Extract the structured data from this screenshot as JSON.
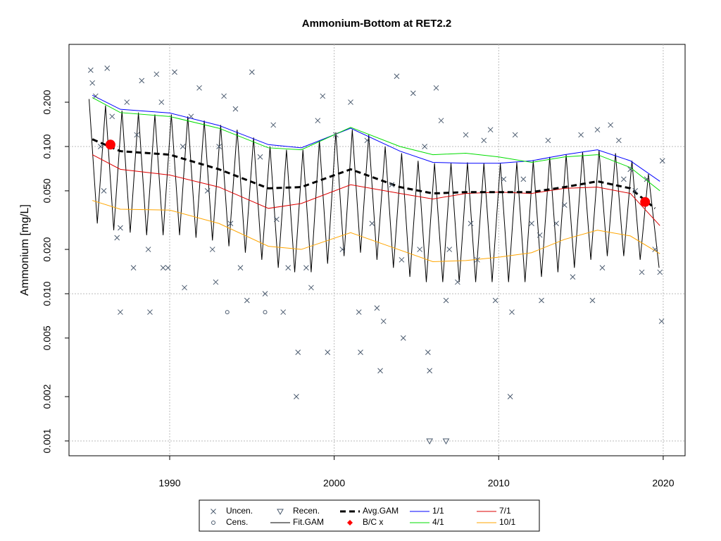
{
  "chart_data": {
    "type": "scatter-line",
    "title": "Ammonium-Bottom at RET2.2",
    "y_label": "Ammonium [mg/L]",
    "log_y": true,
    "xlim": [
      1983.88,
      2021.33
    ],
    "ylim": [
      0.000793,
      0.494
    ],
    "xticks": [
      1990,
      2000,
      2010,
      2020
    ],
    "yticks": [
      0.001,
      0.002,
      0.005,
      {
        "value": 0.01,
        "label": "0.010"
      },
      {
        "value": 0.02,
        "label": "0.020"
      },
      {
        "value": 0.05,
        "label": "0.050"
      },
      {
        "value": 0.1,
        "label": "0.100"
      },
      {
        "value": 0.2,
        "label": "0.200"
      }
    ],
    "y_grid": [
      0.001,
      0.01,
      0.1
    ],
    "grid": true,
    "series": [
      {
        "name": "Uncen.",
        "style": "cross",
        "color": "#4a5a6e",
        "x": [
          1985.2,
          1985.3,
          1985.5,
          1985.8,
          1986,
          1986.2,
          1986.5,
          1986.8,
          1987,
          1987,
          1987.4,
          1987.8,
          1988,
          1988.3,
          1988.7,
          1988.8,
          1989.2,
          1989.5,
          1989.6,
          1989.9,
          1990.3,
          1990.8,
          1990.9,
          1991.3,
          1991.8,
          1992.3,
          1992.6,
          1992.8,
          1993,
          1993.3,
          1993.7,
          1994,
          1994.3,
          1994.7,
          1995,
          1995.5,
          1995.8,
          1996.3,
          1996.5,
          1996.9,
          1997.2,
          1997.8,
          1997.7,
          1998.3,
          1998.6,
          1999,
          1999.3,
          1999.6,
          2000.1,
          2000.5,
          2001,
          2001.5,
          2001.6,
          2002,
          2002.3,
          2002.6,
          2002.8,
          2003,
          2003.5,
          2003.8,
          2004.1,
          2004.2,
          2004.8,
          2005.2,
          2005.5,
          2005.7,
          2005.8,
          2006.2,
          2006.5,
          2006.8,
          2007,
          2007.5,
          2008,
          2008.3,
          2008.7,
          2009.1,
          2009.5,
          2009.8,
          2010.3,
          2010.7,
          2010.8,
          2011,
          2011.5,
          2012,
          2012.5,
          2012.6,
          2013,
          2013.5,
          2014,
          2014.5,
          2015,
          2015.7,
          2016,
          2016.3,
          2016.8,
          2017.3,
          2017.6,
          2018,
          2018.3,
          2018.7,
          2019,
          2019.5,
          2019.8,
          2019.9,
          2019.95
        ],
        "values": [
          0.33,
          0.27,
          0.22,
          0.1,
          0.05,
          0.34,
          0.16,
          0.024,
          0.028,
          0.0075,
          0.2,
          0.015,
          0.12,
          0.28,
          0.02,
          0.0075,
          0.31,
          0.2,
          0.015,
          0.015,
          0.32,
          0.1,
          0.011,
          0.16,
          0.25,
          0.05,
          0.02,
          0.012,
          0.1,
          0.22,
          0.03,
          0.18,
          0.015,
          0.009,
          0.32,
          0.085,
          0.01,
          0.14,
          0.032,
          0.0075,
          0.015,
          0.004,
          0.002,
          0.015,
          0.011,
          0.15,
          0.22,
          0.004,
          0.12,
          0.02,
          0.2,
          0.0075,
          0.004,
          0.11,
          0.03,
          0.008,
          0.003,
          0.0065,
          0.055,
          0.3,
          0.017,
          0.005,
          0.23,
          0.02,
          0.1,
          0.004,
          0.003,
          0.25,
          0.15,
          0.009,
          0.02,
          0.012,
          0.12,
          0.03,
          0.017,
          0.11,
          0.13,
          0.009,
          0.06,
          0.002,
          0.0075,
          0.12,
          0.06,
          0.03,
          0.025,
          0.009,
          0.11,
          0.03,
          0.04,
          0.013,
          0.12,
          0.009,
          0.13,
          0.015,
          0.14,
          0.11,
          0.06,
          0.07,
          0.05,
          0.014,
          0.06,
          0.02,
          0.014,
          0.0065,
          0.08
        ]
      },
      {
        "name": "Cens.",
        "style": "circle",
        "color": "#4a5a6e",
        "x": [
          1993.5,
          1995.8
        ],
        "values": [
          0.0075,
          0.0075
        ]
      },
      {
        "name": "Recen.",
        "style": "triangle",
        "color": "#4a5a6e",
        "x": [
          2005.8,
          2006.8
        ],
        "values": [
          0.001,
          0.001
        ]
      },
      {
        "name": "Fit.GAM",
        "style": "line",
        "color": "#000000",
        "x": [
          1985.1,
          1985.6,
          1986.1,
          1986.6,
          1987.1,
          1987.6,
          1988.1,
          1988.6,
          1989.1,
          1989.6,
          1990.1,
          1990.6,
          1991.1,
          1991.6,
          1992.1,
          1992.6,
          1993.1,
          1993.6,
          1994.1,
          1994.6,
          1995.1,
          1995.6,
          1996.1,
          1996.6,
          1997.1,
          1997.6,
          1998.1,
          1998.6,
          1999.1,
          1999.6,
          2000.1,
          2000.6,
          2001.1,
          2001.6,
          2002.1,
          2002.6,
          2003.1,
          2003.6,
          2004.1,
          2004.6,
          2005.1,
          2005.6,
          2006.1,
          2006.6,
          2007.1,
          2007.6,
          2008.1,
          2008.6,
          2009.1,
          2009.6,
          2010.1,
          2010.6,
          2011.1,
          2011.6,
          2012.1,
          2012.6,
          2013.1,
          2013.6,
          2014.1,
          2014.6,
          2015.1,
          2015.6,
          2016.1,
          2016.6,
          2017.1,
          2017.6,
          2018.1,
          2018.6,
          2019.1,
          2019.75
        ],
        "values": [
          0.21,
          0.03,
          0.19,
          0.027,
          0.175,
          0.026,
          0.17,
          0.025,
          0.165,
          0.025,
          0.165,
          0.025,
          0.16,
          0.024,
          0.15,
          0.023,
          0.14,
          0.021,
          0.13,
          0.019,
          0.115,
          0.017,
          0.1,
          0.015,
          0.095,
          0.014,
          0.095,
          0.014,
          0.11,
          0.016,
          0.125,
          0.018,
          0.13,
          0.019,
          0.12,
          0.017,
          0.1,
          0.015,
          0.09,
          0.013,
          0.08,
          0.012,
          0.077,
          0.012,
          0.077,
          0.012,
          0.078,
          0.012,
          0.077,
          0.012,
          0.077,
          0.012,
          0.078,
          0.012,
          0.08,
          0.013,
          0.085,
          0.014,
          0.088,
          0.015,
          0.092,
          0.017,
          0.094,
          0.018,
          0.09,
          0.018,
          0.08,
          0.017,
          0.065,
          0.015
        ]
      },
      {
        "name": "Avg.GAM",
        "style": "dashed",
        "color": "#000000",
        "x": [
          1985.3,
          1987,
          1990,
          1993,
          1996,
          1998,
          2001,
          2004,
          2006,
          2008,
          2010,
          2012,
          2014,
          2016,
          2018,
          2019.5
        ],
        "values": [
          0.112,
          0.093,
          0.088,
          0.07,
          0.052,
          0.053,
          0.07,
          0.053,
          0.048,
          0.049,
          0.049,
          0.049,
          0.053,
          0.058,
          0.052,
          0.038
        ]
      },
      {
        "name": "B/C x",
        "style": "dot",
        "color": "#ff0000",
        "x": [
          1986.4,
          2018.9
        ],
        "values": [
          0.103,
          0.042
        ]
      },
      {
        "name": "1/1",
        "style": "line",
        "color": "#0000ff",
        "x": [
          1985.3,
          1987,
          1990,
          1993,
          1996,
          1998,
          2001,
          2004,
          2006,
          2008,
          2010,
          2012,
          2014,
          2016,
          2018,
          2019.8
        ],
        "values": [
          0.223,
          0.179,
          0.169,
          0.139,
          0.103,
          0.098,
          0.133,
          0.093,
          0.078,
          0.077,
          0.077,
          0.08,
          0.088,
          0.095,
          0.08,
          0.058
        ]
      },
      {
        "name": "4/1",
        "style": "line",
        "color": "#00dd00",
        "x": [
          1985.3,
          1987,
          1990,
          1993,
          1996,
          1998,
          2001,
          2004,
          2006,
          2008,
          2010,
          2012,
          2014,
          2016,
          2018,
          2019.8
        ],
        "values": [
          0.215,
          0.17,
          0.16,
          0.133,
          0.098,
          0.095,
          0.135,
          0.1,
          0.088,
          0.09,
          0.085,
          0.078,
          0.085,
          0.088,
          0.072,
          0.05
        ]
      },
      {
        "name": "7/1",
        "style": "line",
        "color": "#dd0000",
        "x": [
          1985.3,
          1987,
          1990,
          1993,
          1996,
          1998,
          2001,
          2004,
          2006,
          2008,
          2010,
          2012,
          2014,
          2016,
          2018,
          2019.8
        ],
        "values": [
          0.088,
          0.07,
          0.064,
          0.053,
          0.038,
          0.041,
          0.055,
          0.048,
          0.044,
          0.048,
          0.049,
          0.048,
          0.052,
          0.053,
          0.048,
          0.029
        ]
      },
      {
        "name": "10/1",
        "style": "line",
        "color": "#ffa500",
        "x": [
          1985.3,
          1987,
          1990,
          1993,
          1996,
          1998,
          2001,
          2004,
          2006,
          2008,
          2010,
          2012,
          2014,
          2016,
          2018,
          2019.8
        ],
        "values": [
          0.043,
          0.0375,
          0.037,
          0.03,
          0.021,
          0.02,
          0.026,
          0.0198,
          0.0165,
          0.0168,
          0.0177,
          0.019,
          0.0234,
          0.027,
          0.0247,
          0.0187
        ]
      }
    ]
  }
}
